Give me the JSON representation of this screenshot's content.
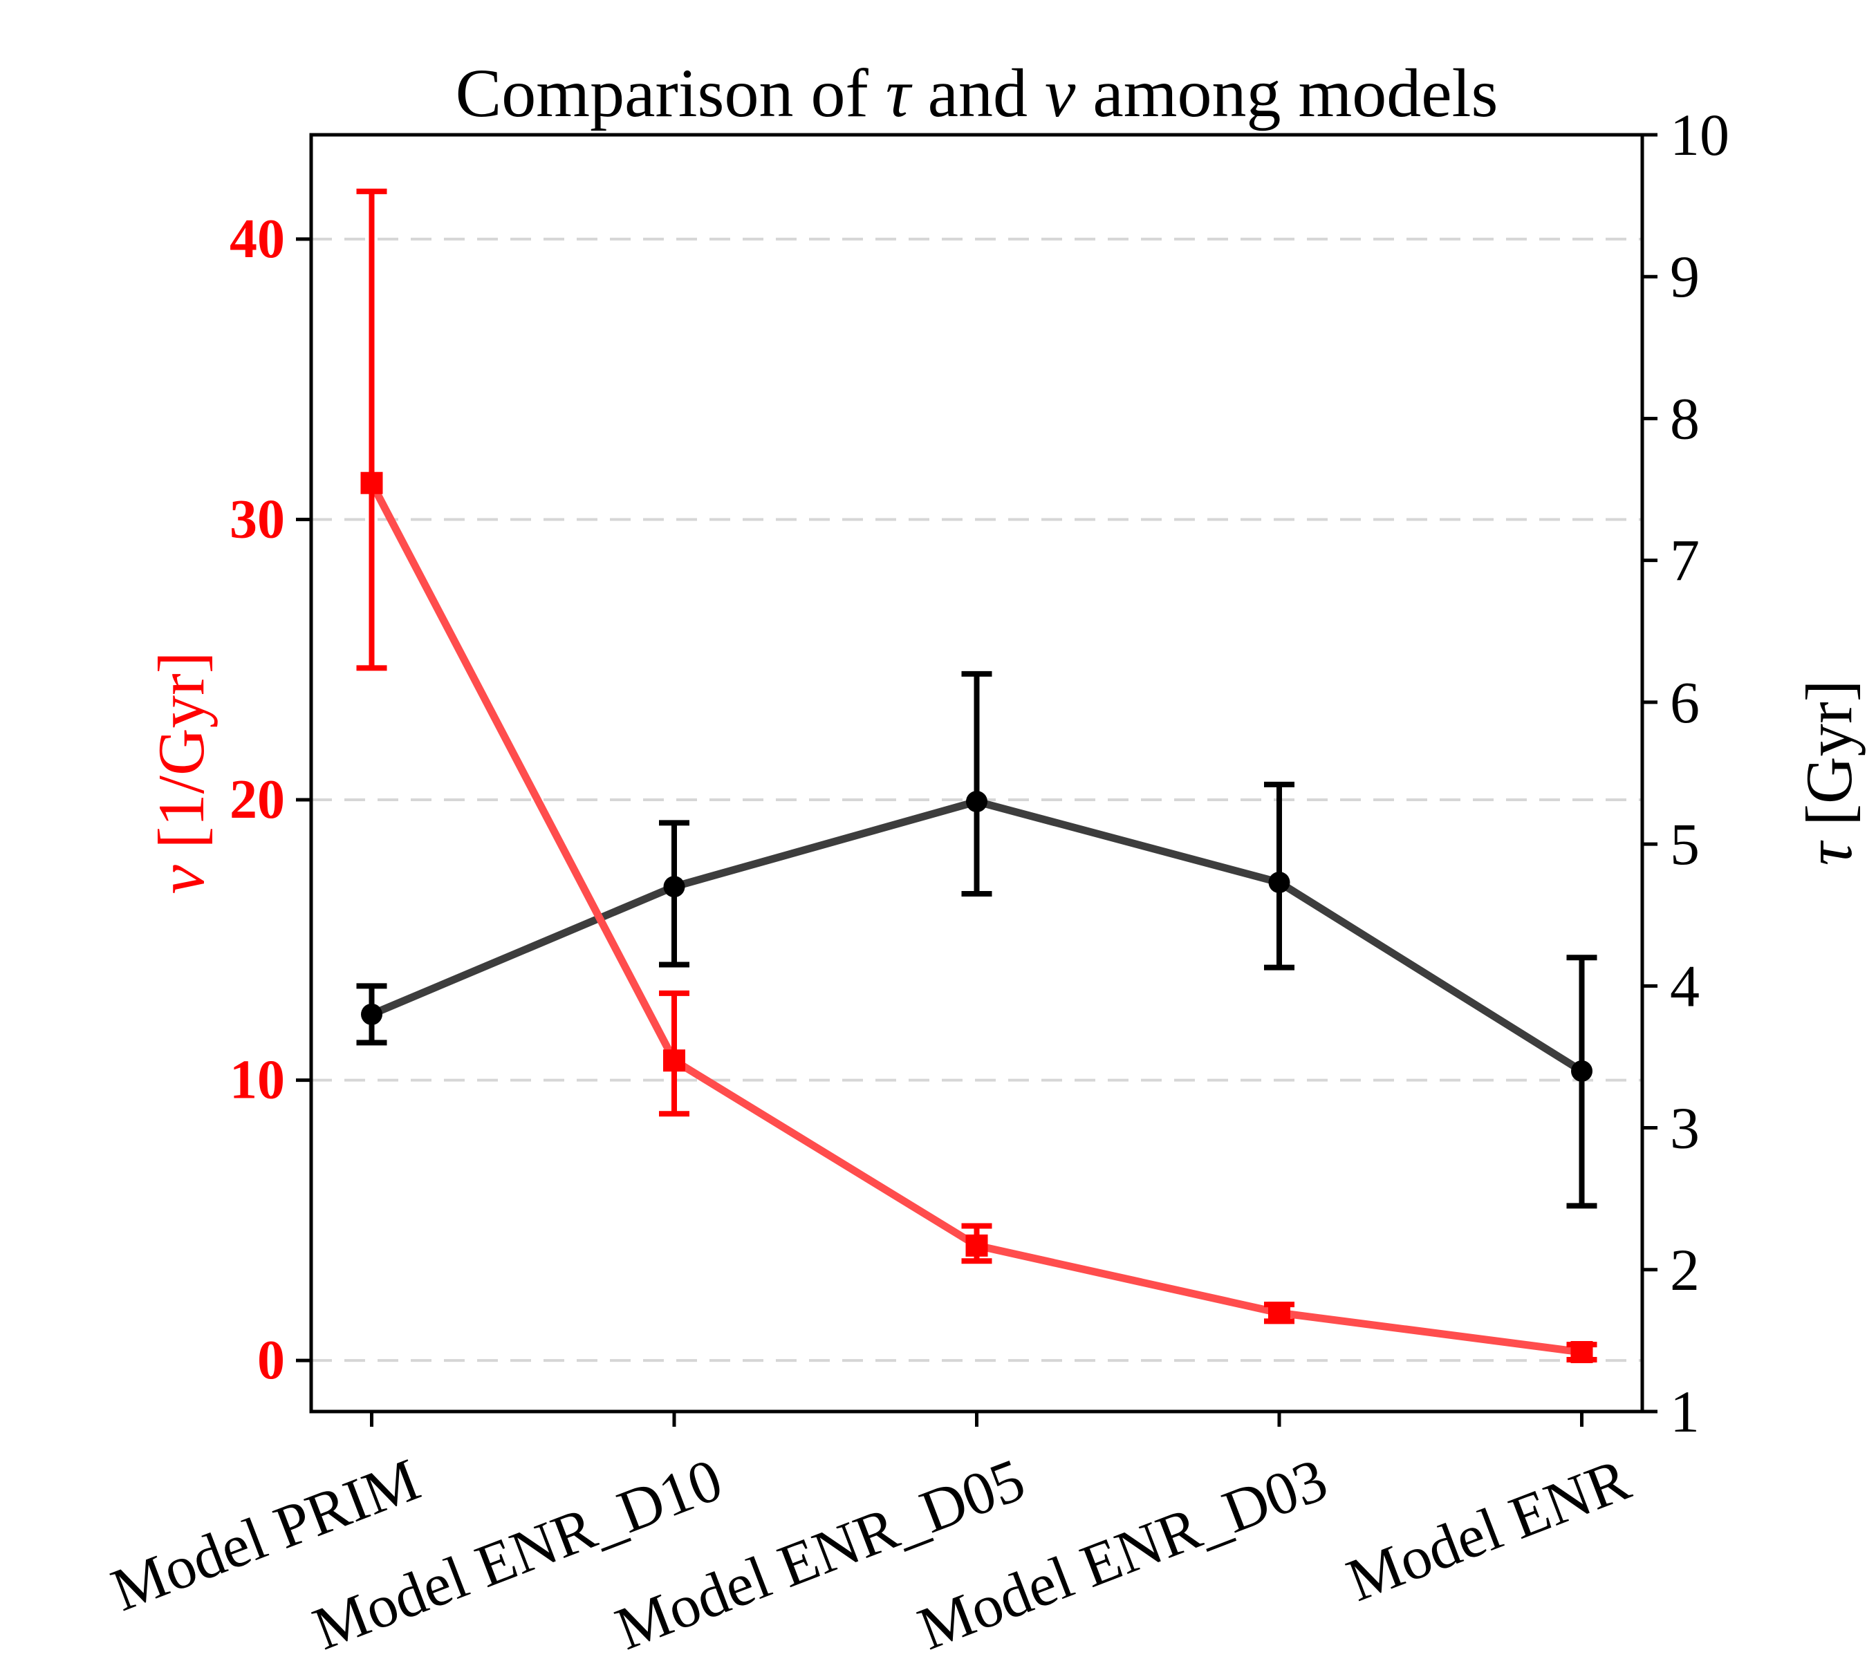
{
  "page": {
    "background": "#ffffff"
  },
  "title_parts": {
    "prefix": "Comparison of ",
    "tau": "τ",
    "mid": " and ",
    "nu": "ν",
    "suffix": " among models"
  },
  "left_label": {
    "symbol": "ν",
    "rest": " [1/Gyr]"
  },
  "right_label": {
    "symbol": "τ",
    "rest": " [Gyr]"
  },
  "chart_data": {
    "type": "line",
    "title": "Comparison of τ and ν among models",
    "categories": [
      "Model PRIM",
      "Model ENR_D10",
      "Model ENR_D05",
      "Model ENR_D03",
      "Model ENR"
    ],
    "x_range": [
      -0.2,
      4.2
    ],
    "x_label_rotation_deg": 21,
    "ylim_left": [
      -1.82,
      43.72
    ],
    "ylim_right": [
      1,
      10
    ],
    "left_ticks": [
      0,
      10,
      20,
      30,
      40
    ],
    "right_ticks": [
      1,
      2,
      3,
      4,
      5,
      6,
      7,
      8,
      9,
      10
    ],
    "left_axis_color": "#ff0000",
    "right_axis_color": "#000000",
    "grid": {
      "show": true,
      "orientation": "horizontal",
      "at": "left_ticks",
      "style": "dashed",
      "color": "#d6d6d6"
    },
    "legend": "none",
    "series": [
      {
        "key": "nu",
        "name": "ν [1/Gyr]",
        "axis": "left",
        "marker": "square",
        "color": "#ff0000",
        "line_color": "#ff4d4d",
        "values": [
          31.3,
          10.7,
          4.1,
          1.7,
          0.3
        ],
        "err_up": [
          10.4,
          2.4,
          0.7,
          0.3,
          0.27
        ],
        "err_down": [
          6.6,
          1.9,
          0.55,
          0.3,
          0.27
        ]
      },
      {
        "key": "tau",
        "name": "τ [Gyr]",
        "axis": "right",
        "marker": "circle",
        "color": "#000000",
        "line_color": "#3d3d3d",
        "values": [
          3.8,
          4.7,
          5.3,
          4.73,
          3.4
        ],
        "err_up": [
          0.2,
          0.45,
          0.9,
          0.69,
          0.8
        ],
        "err_down": [
          0.2,
          0.55,
          0.65,
          0.6,
          0.95
        ]
      }
    ]
  }
}
